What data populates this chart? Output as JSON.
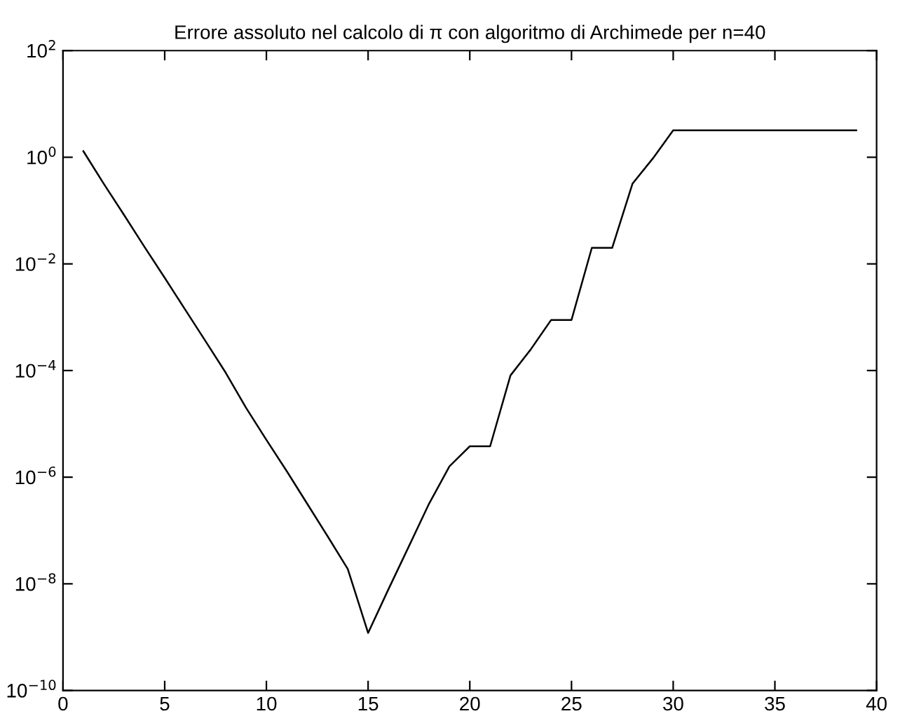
{
  "chart_data": {
    "type": "line",
    "title": "Errore assoluto nel calcolo di π con algoritmo di Archimede per n=40",
    "x": [
      1,
      2,
      3,
      4,
      5,
      6,
      7,
      8,
      9,
      10,
      11,
      12,
      13,
      14,
      15,
      16,
      17,
      18,
      19,
      20,
      21,
      22,
      23,
      24,
      25,
      26,
      27,
      28,
      29,
      30,
      31,
      32,
      33,
      34,
      35,
      36,
      37,
      38,
      39
    ],
    "series": [
      {
        "color": "#000000",
        "values": [
          1.3,
          0.32,
          0.083,
          0.021,
          0.0055,
          0.0014,
          0.00036,
          9.1e-05,
          2e-05,
          5e-06,
          1.3e-06,
          3.2e-07,
          7.9e-08,
          1.9e-08,
          1.2e-09,
          7.9e-09,
          5e-08,
          3.2e-07,
          1.6e-06,
          3.8e-06,
          3.8e-06,
          8.1e-05,
          0.00025,
          0.00089,
          0.00089,
          0.02,
          0.02,
          0.32,
          0.95,
          3.2,
          3.2,
          3.2,
          3.2,
          3.2,
          3.2,
          3.2,
          3.2,
          3.2,
          3.2
        ]
      }
    ],
    "log": "y",
    "xlim": [
      0,
      40
    ],
    "xticks": [
      0,
      5,
      10,
      15,
      20,
      25,
      30,
      35,
      40
    ],
    "ylim": [
      1e-10,
      100
    ],
    "yticks": [
      {
        "value": 1e-10,
        "label": "10$^{−10}$"
      },
      {
        "value": 1e-08,
        "label": "10$^{−8}$"
      },
      {
        "value": 1e-06,
        "label": "10$^{−6}$"
      },
      {
        "value": 0.0001,
        "label": "10$^{−4}$"
      },
      {
        "value": 0.01,
        "label": "10$^{−2}$"
      },
      {
        "value": 1,
        "label": "10$^{0}$"
      },
      {
        "value": 100,
        "label": "10$^{2}$"
      }
    ],
    "grid": false,
    "legend": false,
    "marker": "none",
    "line_style": "solid"
  }
}
